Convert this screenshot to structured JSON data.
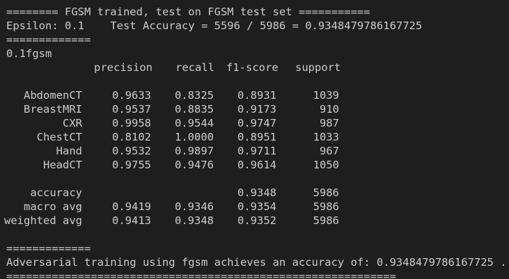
{
  "terminal": {
    "header_line": "======== FGSM trained, test on FGSM test set ===========",
    "epsilon_line": "Epsilon: 0.1    Test Accuracy = 5596 / 5986 = 0.9348479786167725",
    "sep1": "=============",
    "title": "0.1fgsm",
    "columns": {
      "precision": "precision",
      "recall": "recall",
      "f1": "f1-score",
      "support": "support"
    },
    "rows": [
      {
        "label": "AbdomenCT",
        "precision": "0.9633",
        "recall": "0.8325",
        "f1": "0.8931",
        "support": "1039"
      },
      {
        "label": "BreastMRI",
        "precision": "0.9537",
        "recall": "0.8835",
        "f1": "0.9173",
        "support": "910"
      },
      {
        "label": "CXR",
        "precision": "0.9958",
        "recall": "0.9544",
        "f1": "0.9747",
        "support": "987"
      },
      {
        "label": "ChestCT",
        "precision": "0.8102",
        "recall": "1.0000",
        "f1": "0.8951",
        "support": "1033"
      },
      {
        "label": "Hand",
        "precision": "0.9532",
        "recall": "0.9897",
        "f1": "0.9711",
        "support": "967"
      },
      {
        "label": "HeadCT",
        "precision": "0.9755",
        "recall": "0.9476",
        "f1": "0.9614",
        "support": "1050"
      }
    ],
    "summary": {
      "accuracy": {
        "label": "accuracy",
        "f1": "0.9348",
        "support": "5986"
      },
      "macro": {
        "label": "macro avg",
        "precision": "0.9419",
        "recall": "0.9346",
        "f1": "0.9354",
        "support": "5986"
      },
      "weighted": {
        "label": "weighted avg",
        "precision": "0.9413",
        "recall": "0.9348",
        "f1": "0.9352",
        "support": "5986"
      }
    },
    "sep2": "=============",
    "result_line": "Adversarial training using fgsm achieves an accuracy of: 0.9348479786167725 .",
    "footer_line": "============================================================"
  }
}
